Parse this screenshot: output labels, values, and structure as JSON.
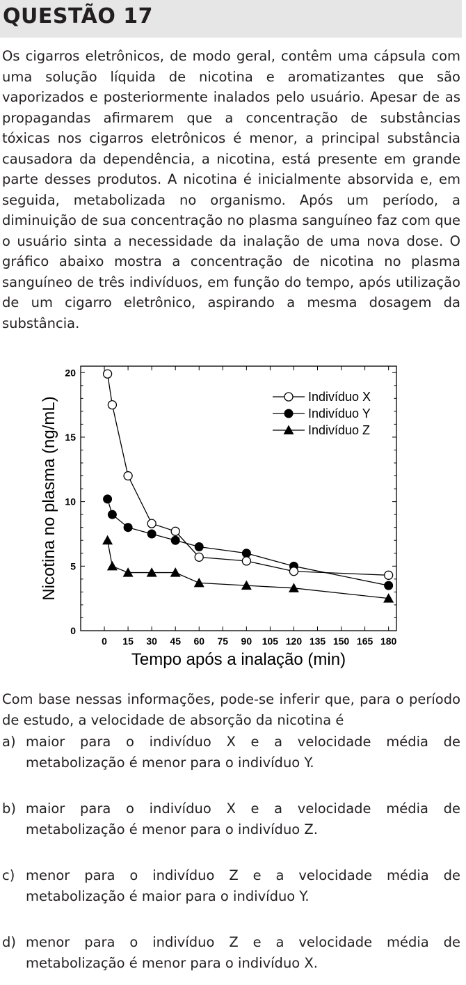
{
  "header": {
    "title": "QUESTÃO 17"
  },
  "intro": "Os cigarros eletrônicos, de modo geral, contêm uma cápsula com uma solução líquida de nicotina e aromatizantes que são vaporizados e posteriormente inalados pelo usuário. Apesar de as propagandas afirmarem que a concentração de substâncias tóxicas nos cigarros eletrônicos é menor, a principal substância causadora da dependência, a nicotina, está presente em grande parte desses produtos. A nicotina é inicialmente absorvida e, em seguida, metabolizada no organismo. Após um período, a diminuição de sua concentração no plasma sanguíneo faz com que o usuário sinta a necessidade da inalação de uma nova dose. O gráfico abaixo mostra a concentração de nicotina no plasma sanguíneo de três indivíduos, em função do tempo, após utilização de um cigarro eletrônico, aspirando a mesma dosagem da substância.",
  "question": "Com base nessas informações, pode-se inferir que, para o período de estudo, a velocidade de absorção da nicotina é",
  "options": [
    {
      "letter": "a)",
      "text": "maior para o indivíduo X e a velocidade média de metabolização é menor para o indivíduo Y."
    },
    {
      "letter": "b)",
      "text": "maior para o indivíduo X e a velocidade média de metabolização é menor para o indivíduo Z."
    },
    {
      "letter": "c)",
      "text": "menor para o indivíduo Z e a velocidade média de metabolização é maior para o indivíduo Y."
    },
    {
      "letter": "d)",
      "text": "menor para o indivíduo Z e a velocidade média de metabolização é menor para o indivíduo X."
    }
  ],
  "chart_data": {
    "type": "line",
    "xlabel": "Tempo após a inalação (min)",
    "ylabel": "Nicotina no plasma (ng/mL)",
    "xlim": [
      -15,
      185
    ],
    "ylim": [
      0,
      20.5
    ],
    "xticks": [
      0,
      15,
      30,
      45,
      60,
      75,
      90,
      105,
      120,
      135,
      150,
      165,
      180
    ],
    "yticks": [
      0,
      5,
      10,
      15,
      20
    ],
    "legend_position": "top-right",
    "grid": false,
    "series": [
      {
        "name": "Indivíduo X",
        "marker": "open-circle",
        "x": [
          2,
          5,
          15,
          30,
          45,
          60,
          90,
          120,
          180
        ],
        "y": [
          19.9,
          17.5,
          12.0,
          8.3,
          7.7,
          5.7,
          5.4,
          4.6,
          4.3
        ]
      },
      {
        "name": "Indivíduo Y",
        "marker": "filled-circle",
        "x": [
          2,
          5,
          15,
          30,
          45,
          60,
          90,
          120,
          180
        ],
        "y": [
          10.2,
          9.0,
          8.0,
          7.5,
          7.0,
          6.5,
          6.0,
          5.0,
          3.5
        ]
      },
      {
        "name": "Indivíduo Z",
        "marker": "filled-triangle",
        "x": [
          2,
          5,
          15,
          30,
          45,
          60,
          90,
          120,
          180
        ],
        "y": [
          7.0,
          5.0,
          4.5,
          4.5,
          4.5,
          3.7,
          3.5,
          3.3,
          2.5
        ]
      }
    ]
  }
}
